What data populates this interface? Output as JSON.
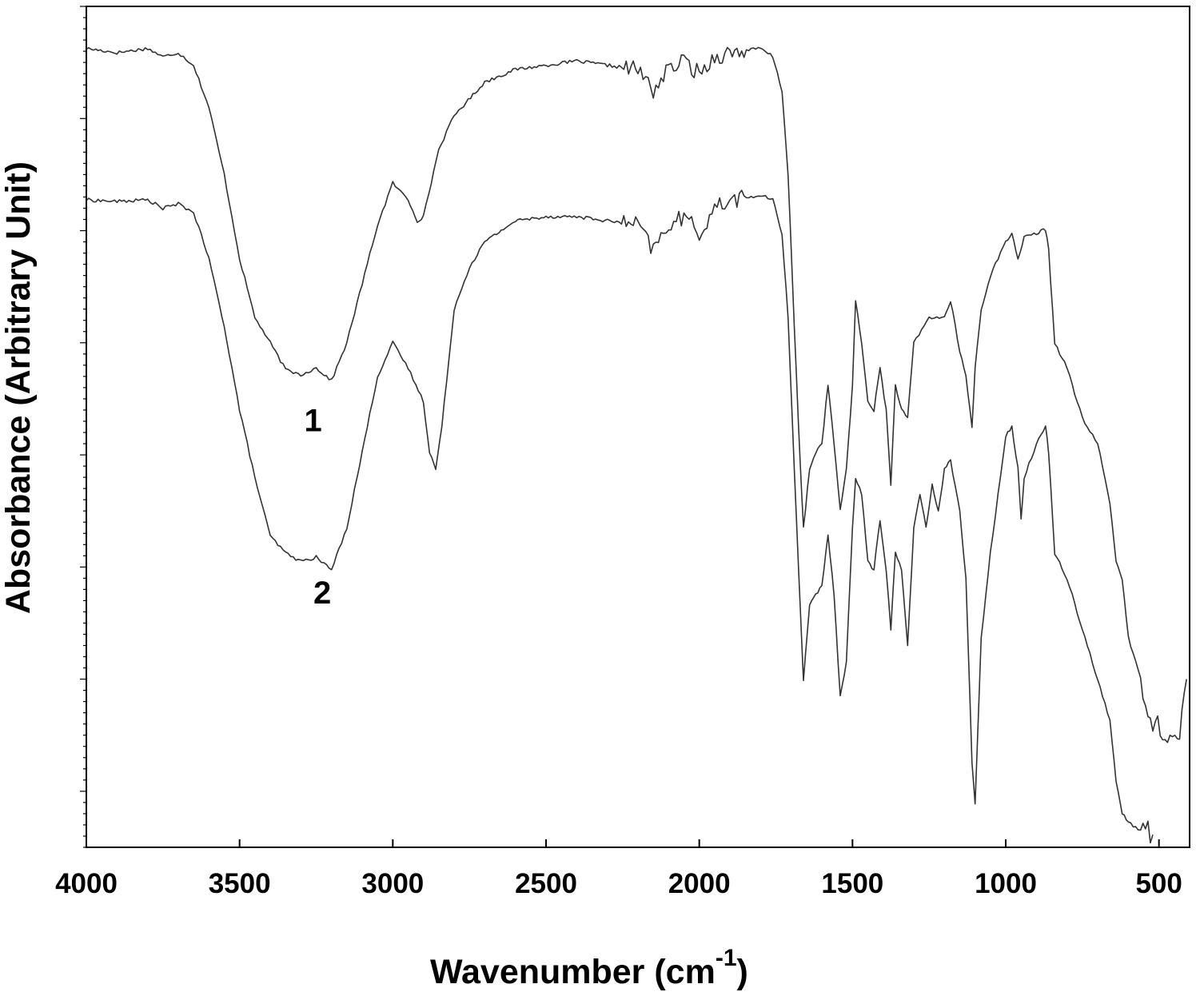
{
  "chart_data": {
    "type": "line",
    "xlabel": "Wavenumber (cm",
    "xlabel_sup": "-1",
    "xlabel_close": ")",
    "ylabel": "Absorbance (Arbitrary Unit)",
    "xlim": [
      4000,
      400
    ],
    "x_reversed": true,
    "ylim": [
      0,
      1
    ],
    "y_ticks_labeled": false,
    "x_ticks": [
      4000,
      3500,
      3000,
      2500,
      2000,
      1500,
      1000,
      500
    ],
    "x_tick_labels": [
      "4000",
      "3500",
      "3000",
      "2500",
      "2000",
      "1500",
      "1000",
      "500"
    ],
    "grid": false,
    "legend": "none",
    "annotations": [
      {
        "text": "1",
        "x": 3260,
        "y": 0.495
      },
      {
        "text": "2",
        "x": 3230,
        "y": 0.29
      }
    ],
    "series": [
      {
        "label": "1",
        "points": [
          [
            4000,
            0.95
          ],
          [
            3900,
            0.945
          ],
          [
            3800,
            0.95
          ],
          [
            3750,
            0.94
          ],
          [
            3700,
            0.945
          ],
          [
            3650,
            0.93
          ],
          [
            3600,
            0.88
          ],
          [
            3550,
            0.8
          ],
          [
            3500,
            0.7
          ],
          [
            3450,
            0.63
          ],
          [
            3400,
            0.6
          ],
          [
            3350,
            0.568
          ],
          [
            3300,
            0.562
          ],
          [
            3250,
            0.57
          ],
          [
            3200,
            0.555
          ],
          [
            3150,
            0.6
          ],
          [
            3100,
            0.67
          ],
          [
            3050,
            0.74
          ],
          [
            3000,
            0.79
          ],
          [
            2950,
            0.77
          ],
          [
            2920,
            0.745
          ],
          [
            2900,
            0.75
          ],
          [
            2850,
            0.83
          ],
          [
            2800,
            0.87
          ],
          [
            2700,
            0.91
          ],
          [
            2600,
            0.925
          ],
          [
            2500,
            0.93
          ],
          [
            2400,
            0.935
          ],
          [
            2300,
            0.93
          ],
          [
            2200,
            0.925
          ],
          [
            2150,
            0.9
          ],
          [
            2100,
            0.925
          ],
          [
            2050,
            0.935
          ],
          [
            2000,
            0.92
          ],
          [
            1950,
            0.94
          ],
          [
            1900,
            0.945
          ],
          [
            1800,
            0.95
          ],
          [
            1760,
            0.94
          ],
          [
            1730,
            0.9
          ],
          [
            1710,
            0.8
          ],
          [
            1690,
            0.62
          ],
          [
            1670,
            0.45
          ],
          [
            1660,
            0.38
          ],
          [
            1640,
            0.45
          ],
          [
            1620,
            0.47
          ],
          [
            1600,
            0.48
          ],
          [
            1580,
            0.55
          ],
          [
            1560,
            0.48
          ],
          [
            1540,
            0.4
          ],
          [
            1520,
            0.45
          ],
          [
            1500,
            0.55
          ],
          [
            1490,
            0.65
          ],
          [
            1470,
            0.6
          ],
          [
            1450,
            0.53
          ],
          [
            1430,
            0.52
          ],
          [
            1410,
            0.57
          ],
          [
            1390,
            0.52
          ],
          [
            1375,
            0.43
          ],
          [
            1360,
            0.55
          ],
          [
            1340,
            0.52
          ],
          [
            1320,
            0.51
          ],
          [
            1300,
            0.6
          ],
          [
            1250,
            0.63
          ],
          [
            1200,
            0.63
          ],
          [
            1180,
            0.65
          ],
          [
            1150,
            0.59
          ],
          [
            1130,
            0.56
          ],
          [
            1110,
            0.5
          ],
          [
            1100,
            0.57
          ],
          [
            1080,
            0.64
          ],
          [
            1050,
            0.68
          ],
          [
            1000,
            0.72
          ],
          [
            980,
            0.73
          ],
          [
            960,
            0.7
          ],
          [
            940,
            0.725
          ],
          [
            900,
            0.73
          ],
          [
            870,
            0.735
          ],
          [
            860,
            0.71
          ],
          [
            840,
            0.6
          ],
          [
            800,
            0.57
          ],
          [
            750,
            0.51
          ],
          [
            700,
            0.48
          ],
          [
            660,
            0.41
          ],
          [
            640,
            0.34
          ],
          [
            620,
            0.32
          ],
          [
            600,
            0.25
          ],
          [
            560,
            0.2
          ],
          [
            520,
            0.15
          ],
          [
            480,
            0.14
          ],
          [
            440,
            0.12
          ],
          [
            410,
            0.2
          ]
        ]
      },
      {
        "label": "2",
        "points": [
          [
            4000,
            0.77
          ],
          [
            3900,
            0.768
          ],
          [
            3800,
            0.77
          ],
          [
            3750,
            0.76
          ],
          [
            3700,
            0.765
          ],
          [
            3650,
            0.755
          ],
          [
            3600,
            0.7
          ],
          [
            3550,
            0.62
          ],
          [
            3500,
            0.52
          ],
          [
            3450,
            0.44
          ],
          [
            3400,
            0.37
          ],
          [
            3350,
            0.35
          ],
          [
            3300,
            0.34
          ],
          [
            3250,
            0.345
          ],
          [
            3200,
            0.33
          ],
          [
            3150,
            0.38
          ],
          [
            3100,
            0.47
          ],
          [
            3050,
            0.56
          ],
          [
            3000,
            0.6
          ],
          [
            2950,
            0.57
          ],
          [
            2900,
            0.53
          ],
          [
            2880,
            0.47
          ],
          [
            2860,
            0.45
          ],
          [
            2840,
            0.5
          ],
          [
            2800,
            0.64
          ],
          [
            2750,
            0.69
          ],
          [
            2700,
            0.72
          ],
          [
            2600,
            0.745
          ],
          [
            2500,
            0.75
          ],
          [
            2400,
            0.75
          ],
          [
            2300,
            0.745
          ],
          [
            2200,
            0.74
          ],
          [
            2150,
            0.71
          ],
          [
            2100,
            0.74
          ],
          [
            2050,
            0.75
          ],
          [
            2000,
            0.73
          ],
          [
            1950,
            0.76
          ],
          [
            1900,
            0.77
          ],
          [
            1800,
            0.775
          ],
          [
            1760,
            0.77
          ],
          [
            1730,
            0.73
          ],
          [
            1710,
            0.63
          ],
          [
            1690,
            0.45
          ],
          [
            1670,
            0.28
          ],
          [
            1660,
            0.2
          ],
          [
            1640,
            0.29
          ],
          [
            1620,
            0.3
          ],
          [
            1600,
            0.31
          ],
          [
            1580,
            0.37
          ],
          [
            1560,
            0.3
          ],
          [
            1540,
            0.18
          ],
          [
            1520,
            0.22
          ],
          [
            1500,
            0.38
          ],
          [
            1490,
            0.44
          ],
          [
            1470,
            0.42
          ],
          [
            1450,
            0.34
          ],
          [
            1430,
            0.33
          ],
          [
            1410,
            0.39
          ],
          [
            1390,
            0.33
          ],
          [
            1375,
            0.26
          ],
          [
            1360,
            0.35
          ],
          [
            1340,
            0.33
          ],
          [
            1320,
            0.24
          ],
          [
            1300,
            0.38
          ],
          [
            1280,
            0.42
          ],
          [
            1260,
            0.38
          ],
          [
            1240,
            0.43
          ],
          [
            1220,
            0.4
          ],
          [
            1200,
            0.45
          ],
          [
            1180,
            0.46
          ],
          [
            1150,
            0.4
          ],
          [
            1130,
            0.32
          ],
          [
            1110,
            0.1
          ],
          [
            1100,
            0.05
          ],
          [
            1080,
            0.25
          ],
          [
            1050,
            0.35
          ],
          [
            1000,
            0.49
          ],
          [
            980,
            0.5
          ],
          [
            960,
            0.45
          ],
          [
            950,
            0.39
          ],
          [
            940,
            0.44
          ],
          [
            900,
            0.48
          ],
          [
            870,
            0.5
          ],
          [
            860,
            0.47
          ],
          [
            840,
            0.35
          ],
          [
            800,
            0.32
          ],
          [
            750,
            0.26
          ],
          [
            700,
            0.2
          ],
          [
            660,
            0.15
          ],
          [
            640,
            0.08
          ],
          [
            620,
            0.04
          ],
          [
            600,
            0.03
          ],
          [
            560,
            0.02
          ],
          [
            520,
            0.015
          ]
        ]
      }
    ]
  }
}
